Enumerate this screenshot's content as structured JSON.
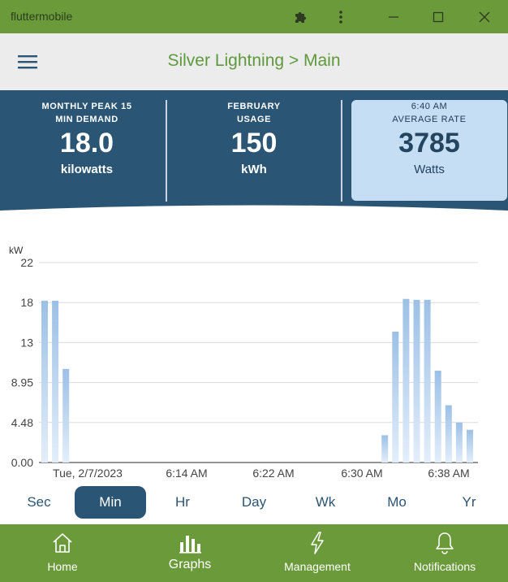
{
  "window": {
    "title": "fluttermobile"
  },
  "header": {
    "title": "Silver Lightning > Main"
  },
  "summary": {
    "peak": {
      "line1": "MONTHLY PEAK 15",
      "line2": "MIN DEMAND",
      "value": "18.0",
      "unit": "kilowatts"
    },
    "usage": {
      "line1": "FEBRUARY",
      "line2": "USAGE",
      "value": "150",
      "unit": "kWh"
    },
    "rate": {
      "line1": "6:40 AM",
      "line2": "AVERAGE RATE",
      "value": "3785",
      "unit": "Watts"
    }
  },
  "chart_data": {
    "type": "bar",
    "ylabel": "kW",
    "yticks": [
      "22",
      "18",
      "13",
      "8.95",
      "4.48",
      "0.00"
    ],
    "ylim": [
      0,
      22
    ],
    "xticks": [
      "Tue, 2/7/2023",
      "6:14 AM",
      "6:22 AM",
      "6:30 AM",
      "6:38 AM"
    ],
    "bars": [
      {
        "slot": 0,
        "value": 17.8
      },
      {
        "slot": 1,
        "value": 17.8
      },
      {
        "slot": 2,
        "value": 10.3
      },
      {
        "slot": 32,
        "value": 3.0
      },
      {
        "slot": 33,
        "value": 14.4
      },
      {
        "slot": 34,
        "value": 18.0
      },
      {
        "slot": 35,
        "value": 17.9
      },
      {
        "slot": 36,
        "value": 17.9
      },
      {
        "slot": 37,
        "value": 10.1
      },
      {
        "slot": 38,
        "value": 6.3
      },
      {
        "slot": 39,
        "value": 4.4
      },
      {
        "slot": 40,
        "value": 3.6
      }
    ],
    "grid": true,
    "bar_color": "#a9c8e8"
  },
  "range": {
    "options": [
      "Sec",
      "Min",
      "Hr",
      "Day",
      "Wk",
      "Mo",
      "Yr"
    ],
    "selected": "Min"
  },
  "nav": {
    "home": "Home",
    "graphs": "Graphs",
    "management": "Management",
    "notifications": "Notifications"
  },
  "colors": {
    "brand_green": "#6a9a3a",
    "panel_blue": "#2b5574",
    "highlight_blue": "#c6def4",
    "title_green": "#5e9a3c"
  }
}
